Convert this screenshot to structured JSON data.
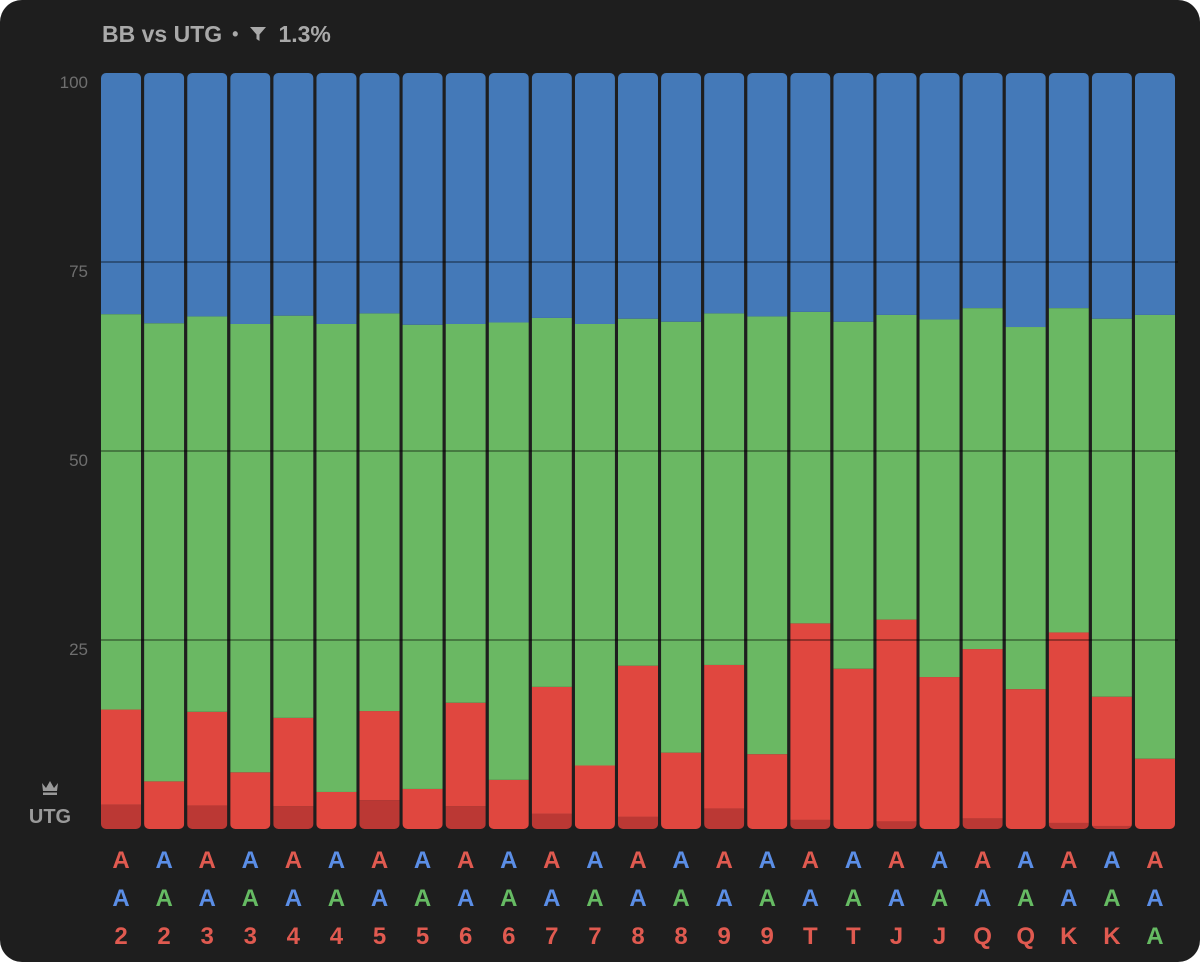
{
  "header": {
    "title": "BB vs UTG",
    "separator": "•",
    "filter_value": "1.3%",
    "filter_icon": "funnel-icon"
  },
  "position": {
    "label": "UTG",
    "icon": "crown-icon"
  },
  "colors": {
    "background": "#1e1e1e",
    "blue": "#4479b8",
    "green": "#6ab863",
    "red": "#e0473f",
    "dark_red": "#bb3834",
    "suit_red": "#e05a50",
    "suit_blue": "#5b8ee6",
    "suit_green": "#66bb63"
  },
  "chart_data": {
    "type": "bar",
    "stacked": true,
    "ylim": [
      0,
      100
    ],
    "yticks": [
      "25",
      "50",
      "75",
      "100"
    ],
    "grid": true,
    "categories": [
      [
        {
          "rank": "A",
          "suit": "red"
        },
        {
          "rank": "A",
          "suit": "blue"
        },
        {
          "rank": "2",
          "suit": "red"
        }
      ],
      [
        {
          "rank": "A",
          "suit": "blue"
        },
        {
          "rank": "A",
          "suit": "green"
        },
        {
          "rank": "2",
          "suit": "red"
        }
      ],
      [
        {
          "rank": "A",
          "suit": "red"
        },
        {
          "rank": "A",
          "suit": "blue"
        },
        {
          "rank": "3",
          "suit": "red"
        }
      ],
      [
        {
          "rank": "A",
          "suit": "blue"
        },
        {
          "rank": "A",
          "suit": "green"
        },
        {
          "rank": "3",
          "suit": "red"
        }
      ],
      [
        {
          "rank": "A",
          "suit": "red"
        },
        {
          "rank": "A",
          "suit": "blue"
        },
        {
          "rank": "4",
          "suit": "red"
        }
      ],
      [
        {
          "rank": "A",
          "suit": "blue"
        },
        {
          "rank": "A",
          "suit": "green"
        },
        {
          "rank": "4",
          "suit": "red"
        }
      ],
      [
        {
          "rank": "A",
          "suit": "red"
        },
        {
          "rank": "A",
          "suit": "blue"
        },
        {
          "rank": "5",
          "suit": "red"
        }
      ],
      [
        {
          "rank": "A",
          "suit": "blue"
        },
        {
          "rank": "A",
          "suit": "green"
        },
        {
          "rank": "5",
          "suit": "red"
        }
      ],
      [
        {
          "rank": "A",
          "suit": "red"
        },
        {
          "rank": "A",
          "suit": "blue"
        },
        {
          "rank": "6",
          "suit": "red"
        }
      ],
      [
        {
          "rank": "A",
          "suit": "blue"
        },
        {
          "rank": "A",
          "suit": "green"
        },
        {
          "rank": "6",
          "suit": "red"
        }
      ],
      [
        {
          "rank": "A",
          "suit": "red"
        },
        {
          "rank": "A",
          "suit": "blue"
        },
        {
          "rank": "7",
          "suit": "red"
        }
      ],
      [
        {
          "rank": "A",
          "suit": "blue"
        },
        {
          "rank": "A",
          "suit": "green"
        },
        {
          "rank": "7",
          "suit": "red"
        }
      ],
      [
        {
          "rank": "A",
          "suit": "red"
        },
        {
          "rank": "A",
          "suit": "blue"
        },
        {
          "rank": "8",
          "suit": "red"
        }
      ],
      [
        {
          "rank": "A",
          "suit": "blue"
        },
        {
          "rank": "A",
          "suit": "green"
        },
        {
          "rank": "8",
          "suit": "red"
        }
      ],
      [
        {
          "rank": "A",
          "suit": "red"
        },
        {
          "rank": "A",
          "suit": "blue"
        },
        {
          "rank": "9",
          "suit": "red"
        }
      ],
      [
        {
          "rank": "A",
          "suit": "blue"
        },
        {
          "rank": "A",
          "suit": "green"
        },
        {
          "rank": "9",
          "suit": "red"
        }
      ],
      [
        {
          "rank": "A",
          "suit": "red"
        },
        {
          "rank": "A",
          "suit": "blue"
        },
        {
          "rank": "T",
          "suit": "red"
        }
      ],
      [
        {
          "rank": "A",
          "suit": "blue"
        },
        {
          "rank": "A",
          "suit": "green"
        },
        {
          "rank": "T",
          "suit": "red"
        }
      ],
      [
        {
          "rank": "A",
          "suit": "red"
        },
        {
          "rank": "A",
          "suit": "blue"
        },
        {
          "rank": "J",
          "suit": "red"
        }
      ],
      [
        {
          "rank": "A",
          "suit": "blue"
        },
        {
          "rank": "A",
          "suit": "green"
        },
        {
          "rank": "J",
          "suit": "red"
        }
      ],
      [
        {
          "rank": "A",
          "suit": "red"
        },
        {
          "rank": "A",
          "suit": "blue"
        },
        {
          "rank": "Q",
          "suit": "red"
        }
      ],
      [
        {
          "rank": "A",
          "suit": "blue"
        },
        {
          "rank": "A",
          "suit": "green"
        },
        {
          "rank": "Q",
          "suit": "red"
        }
      ],
      [
        {
          "rank": "A",
          "suit": "red"
        },
        {
          "rank": "A",
          "suit": "blue"
        },
        {
          "rank": "K",
          "suit": "red"
        }
      ],
      [
        {
          "rank": "A",
          "suit": "blue"
        },
        {
          "rank": "A",
          "suit": "green"
        },
        {
          "rank": "K",
          "suit": "red"
        }
      ],
      [
        {
          "rank": "A",
          "suit": "red"
        },
        {
          "rank": "A",
          "suit": "blue"
        },
        {
          "rank": "A",
          "suit": "green"
        }
      ]
    ],
    "series": [
      {
        "color": "#bb3834",
        "values": [
          3.2,
          0,
          3.1,
          0,
          3.0,
          0,
          3.8,
          0,
          3.0,
          0,
          2.0,
          0,
          1.6,
          0,
          2.7,
          0,
          1.2,
          0,
          1.0,
          0,
          1.4,
          0,
          0.8,
          0.4,
          0
        ]
      },
      {
        "color": "#e0473f",
        "values": [
          12.6,
          6.3,
          12.4,
          7.5,
          11.7,
          4.9,
          11.8,
          5.3,
          13.7,
          6.5,
          16.8,
          8.4,
          20.0,
          10.1,
          19.0,
          9.9,
          26.0,
          21.2,
          26.7,
          20.1,
          22.4,
          18.5,
          25.2,
          17.1,
          9.3
        ]
      },
      {
        "color": "#6ab863",
        "values": [
          52.3,
          60.6,
          52.3,
          59.3,
          53.2,
          61.9,
          52.6,
          61.4,
          50.1,
          60.5,
          48.8,
          58.4,
          45.9,
          57.0,
          46.5,
          57.9,
          41.2,
          45.9,
          40.3,
          47.3,
          45.1,
          47.9,
          42.9,
          50.0,
          58.7
        ]
      },
      {
        "color": "#4479b8",
        "values": [
          32.0,
          33.1,
          32.2,
          33.2,
          32.1,
          33.2,
          31.8,
          33.3,
          33.2,
          33.0,
          32.4,
          33.2,
          32.5,
          32.9,
          31.8,
          32.2,
          31.6,
          32.9,
          32.0,
          32.6,
          31.1,
          33.6,
          31.1,
          32.5,
          32.0
        ]
      }
    ]
  }
}
